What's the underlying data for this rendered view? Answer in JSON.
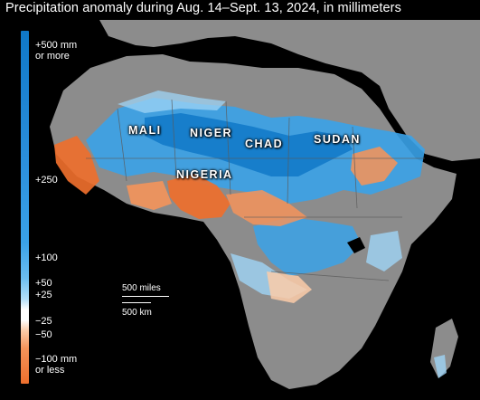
{
  "title": "Precipitation anomaly during Aug. 14–Sept. 13, 2024, in millimeters",
  "legend": {
    "labels": [
      "+500 mm\nor more",
      "+250",
      "+100",
      "+50",
      "+25",
      "−25",
      "−50",
      "−100 mm\nor less"
    ],
    "colors": {
      "wet_max": "#0f78c8",
      "wet_mid": "#3aa2e8",
      "wet_low": "#9fd4f6",
      "neutral": "#ffffff",
      "dry_low": "#fbcba8",
      "dry_mid": "#f4935a",
      "dry_max": "#ee6f2d"
    }
  },
  "countries": {
    "mali": "MALI",
    "niger": "NIGER",
    "chad": "CHAD",
    "sudan": "SUDAN",
    "nigeria": "NIGERIA"
  },
  "scale": {
    "miles": "500 miles",
    "km": "500 km"
  },
  "map_colors": {
    "ocean": "#000000",
    "land": "#8c8c8c",
    "borders": "#5a5a5a"
  }
}
